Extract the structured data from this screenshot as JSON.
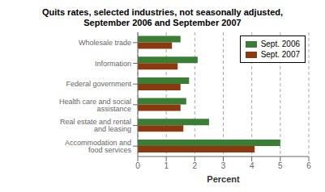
{
  "chart_data": {
    "type": "bar",
    "orientation": "horizontal",
    "title": "Quits rates, selected industries, not seasonally adjusted,\nSeptember 2006 and September 2007",
    "categories": [
      "Accommodation and food services",
      "Real estate and rental and leasing",
      "Health care and social assistance",
      "Federal government",
      "Information",
      "Wholesale trade"
    ],
    "series": [
      {
        "name": "Sept. 2006",
        "color": "#3a7d34",
        "values": [
          5.0,
          2.5,
          1.7,
          1.8,
          2.1,
          1.5
        ]
      },
      {
        "name": "Sept. 2007",
        "color": "#8b3a0f",
        "values": [
          4.1,
          1.6,
          1.5,
          1.5,
          1.4,
          1.2
        ]
      }
    ],
    "xlim": [
      0,
      6
    ],
    "xticks": [
      0,
      1,
      2,
      3,
      4,
      5,
      6
    ],
    "xlabel": "Percent",
    "grid": true,
    "legend": "upper right"
  }
}
